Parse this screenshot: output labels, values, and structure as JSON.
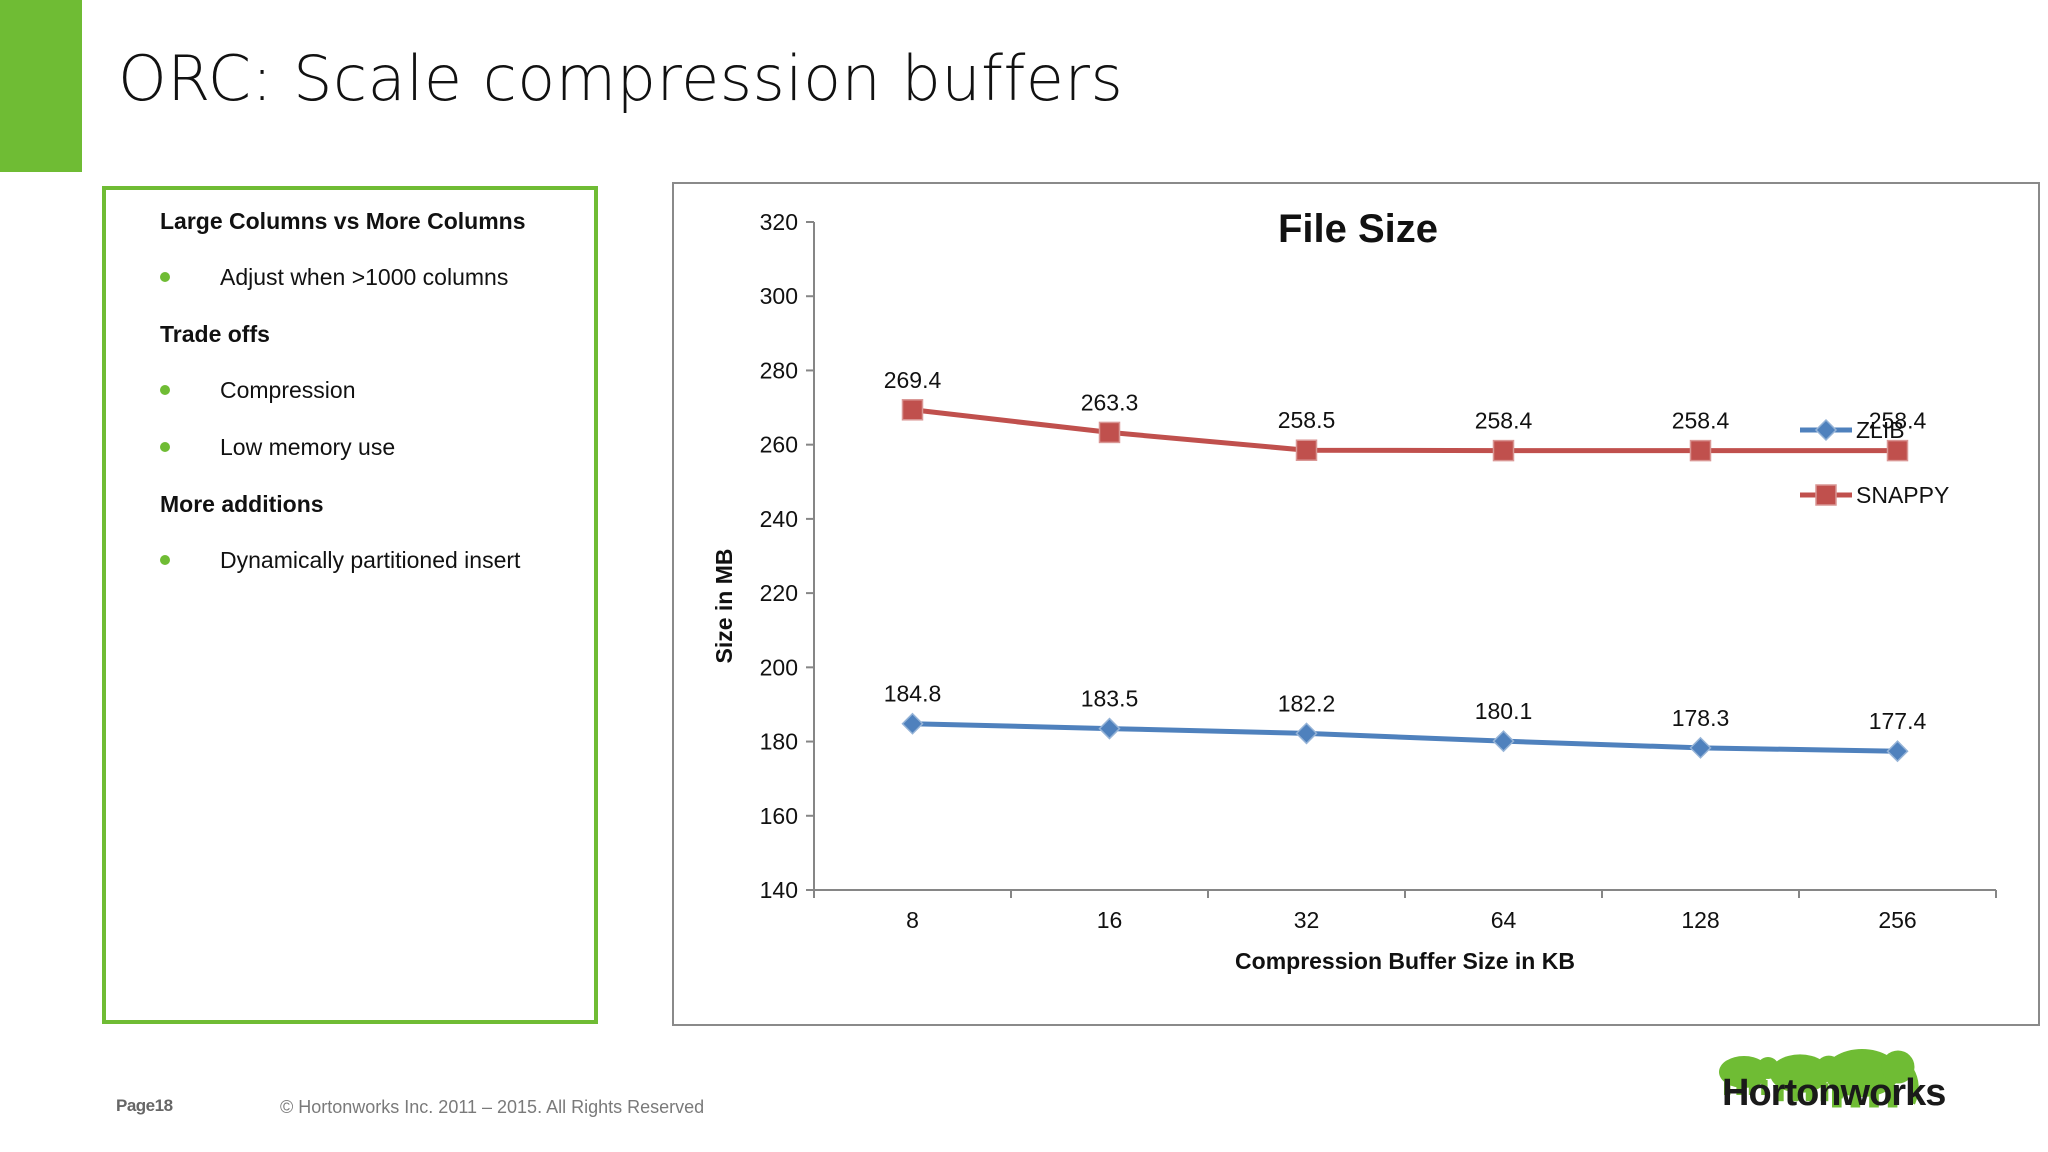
{
  "slide": {
    "title": "ORC: Scale compression buffers",
    "accent_color": "#6fbc34"
  },
  "info_box": {
    "sections": [
      {
        "heading": "Large Columns vs More Columns",
        "bullets": [
          "Adjust when >1000 columns"
        ]
      },
      {
        "heading": "Trade offs",
        "bullets": [
          "Compression",
          "Low memory use"
        ]
      },
      {
        "heading": "More additions",
        "bullets": [
          "Dynamically partitioned insert"
        ]
      }
    ]
  },
  "chart_data": {
    "type": "line",
    "title": "File Size",
    "xlabel": "Compression Buffer Size in KB",
    "ylabel": "Size in MB",
    "categories": [
      "8",
      "16",
      "32",
      "64",
      "128",
      "256"
    ],
    "ylim": [
      140,
      320
    ],
    "yticks": [
      140,
      160,
      180,
      200,
      220,
      240,
      260,
      280,
      300,
      320
    ],
    "grid": false,
    "legend_position": "right",
    "series": [
      {
        "name": "ZLIB",
        "color": "#4f81bd",
        "marker": "diamond",
        "values": [
          184.8,
          183.5,
          182.2,
          180.1,
          178.3,
          177.4
        ]
      },
      {
        "name": "SNAPPY",
        "color": "#c0504d",
        "marker": "square",
        "values": [
          269.4,
          263.3,
          258.5,
          258.4,
          258.4,
          258.4
        ]
      }
    ]
  },
  "footer": {
    "page": "Page18",
    "copyright": "© Hortonworks Inc. 2011 – 2015. All Rights Reserved"
  },
  "logo": {
    "text": "Hortonworks",
    "elephant_color": "#6fbc34"
  }
}
